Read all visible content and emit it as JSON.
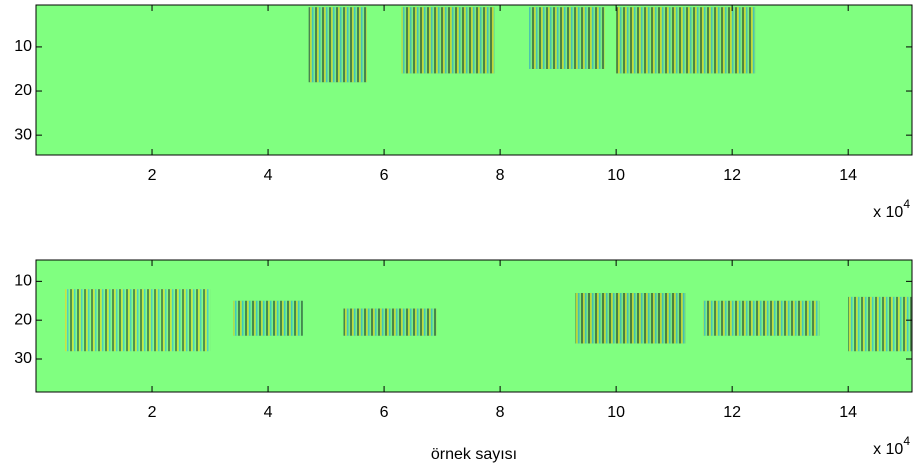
{
  "chart_data": [
    {
      "type": "image",
      "background": "#80ff80",
      "xlim": [
        0,
        15.1
      ],
      "ylim": [
        0.5,
        34.5
      ],
      "y_reversed": true,
      "xticks": [
        2,
        4,
        6,
        8,
        10,
        12,
        14
      ],
      "yticks": [
        10,
        20,
        30
      ],
      "x_multiplier": {
        "base": "x 10",
        "exponent": "4"
      },
      "regions": [
        {
          "x": [
            4.7,
            5.7
          ],
          "y": [
            1,
            18
          ],
          "color": "#5a3a90"
        },
        {
          "x": [
            6.3,
            7.9
          ],
          "y": [
            1,
            16
          ],
          "color": "#802030"
        },
        {
          "x": [
            8.5,
            9.8
          ],
          "y": [
            1,
            15
          ],
          "color": "#6a3a60"
        },
        {
          "x": [
            10.0,
            12.4
          ],
          "y": [
            1,
            16
          ],
          "color": "#a04020"
        }
      ]
    },
    {
      "type": "image",
      "background": "#80ff80",
      "xlim": [
        0,
        15.1
      ],
      "ylim": [
        4.5,
        38.5
      ],
      "y_reversed": true,
      "xticks": [
        2,
        4,
        6,
        8,
        10,
        12,
        14
      ],
      "yticks": [
        10,
        20,
        30
      ],
      "x_multiplier": {
        "base": "x 10",
        "exponent": "4"
      },
      "xlabel": "örnek sayısı",
      "regions": [
        {
          "x": [
            0.5,
            3.0
          ],
          "y": [
            12,
            28
          ],
          "color": "#c0e0a0"
        },
        {
          "x": [
            3.4,
            4.6
          ],
          "y": [
            15,
            24
          ],
          "color": "#3070a0"
        },
        {
          "x": [
            5.3,
            6.9
          ],
          "y": [
            17,
            24
          ],
          "color": "#604870"
        },
        {
          "x": [
            9.3,
            11.2
          ],
          "y": [
            13,
            26
          ],
          "color": "#5a1030"
        },
        {
          "x": [
            11.5,
            13.5
          ],
          "y": [
            15,
            24
          ],
          "color": "#806070"
        },
        {
          "x": [
            14.0,
            15.1
          ],
          "y": [
            14,
            28
          ],
          "color": "#90a0a0"
        }
      ]
    }
  ]
}
